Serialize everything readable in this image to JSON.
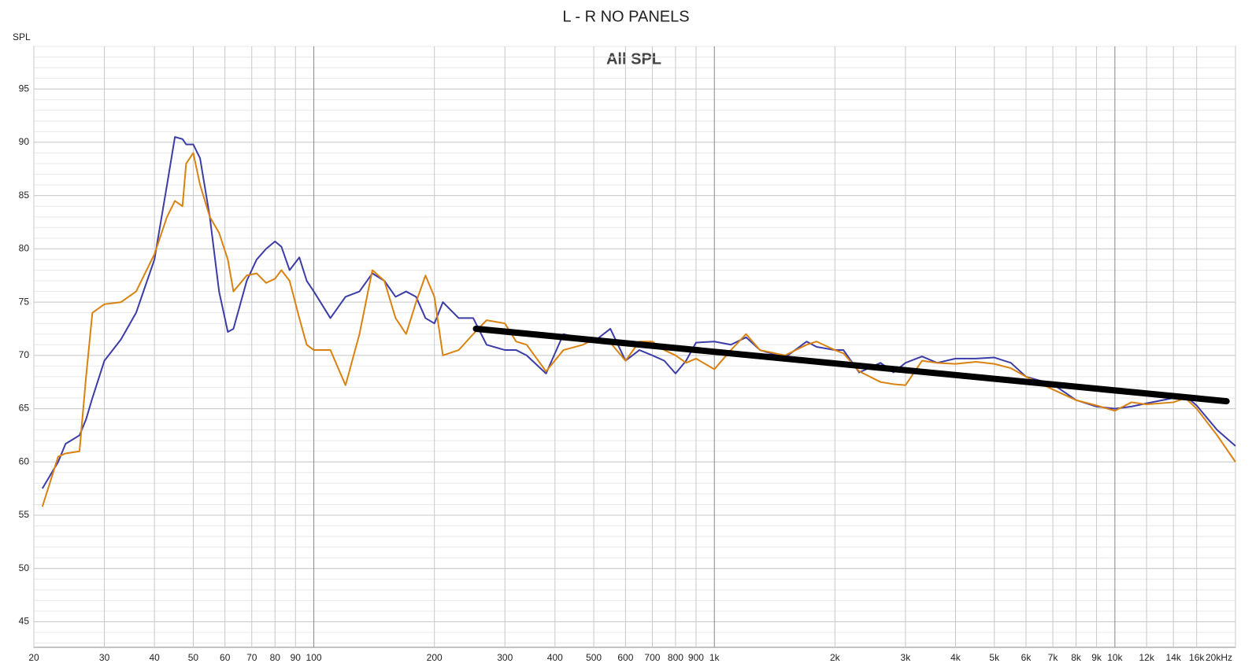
{
  "chart_data": {
    "type": "line",
    "title": "L - R NO PANELS",
    "annotation": "All SPL",
    "ylabel": "SPL",
    "x": [
      21,
      23,
      24,
      26,
      27,
      28,
      30,
      33,
      36,
      40,
      43,
      45,
      47,
      48,
      50,
      52,
      55,
      58,
      61,
      63,
      68,
      72,
      76,
      80,
      83,
      87,
      92,
      96,
      100,
      110,
      120,
      130,
      140,
      150,
      160,
      170,
      180,
      190,
      200,
      210,
      230,
      250,
      270,
      300,
      320,
      340,
      380,
      420,
      470,
      500,
      550,
      600,
      650,
      700,
      750,
      800,
      850,
      900,
      1000,
      1100,
      1200,
      1300,
      1500,
      1700,
      1800,
      2000,
      2100,
      2300,
      2600,
      2800,
      3000,
      3300,
      3600,
      4000,
      4500,
      5000,
      5500,
      6000,
      7000,
      8000,
      9000,
      10000,
      11000,
      12000,
      14000,
      15000,
      16000,
      18000,
      20000
    ],
    "series": [
      {
        "color": "#3c3ca8",
        "values": [
          57.5,
          60,
          61.7,
          62.5,
          64,
          66,
          69.5,
          71.5,
          74,
          79,
          86,
          90.5,
          90.3,
          89.8,
          89.8,
          88.5,
          83,
          76,
          72.2,
          72.5,
          77,
          79,
          80,
          80.7,
          80.2,
          78,
          79.2,
          77,
          76,
          73.5,
          75.5,
          76,
          77.7,
          77,
          75.5,
          76,
          75.5,
          73.5,
          73,
          75,
          73.5,
          73.5,
          71,
          70.5,
          70.5,
          70,
          68.3,
          72,
          71.5,
          71.3,
          72.5,
          69.5,
          70.5,
          70,
          69.5,
          68.3,
          69.5,
          71.2,
          71.3,
          71,
          71.7,
          70.5,
          69.8,
          71.3,
          70.8,
          70.5,
          70.5,
          68.4,
          69.3,
          68.4,
          69.3,
          69.9,
          69.3,
          69.7,
          69.7,
          69.8,
          69.3,
          68,
          67.3,
          65.8,
          65.2,
          65,
          65.2,
          65.5,
          66,
          66.2,
          65.3,
          63,
          61.5
        ]
      },
      {
        "color": "#d9820f",
        "values": [
          55.8,
          60.5,
          60.8,
          61,
          68,
          74,
          74.8,
          75,
          76,
          79.5,
          83,
          84.5,
          84,
          88,
          89,
          86,
          83,
          81.5,
          79,
          76,
          77.5,
          77.7,
          76.8,
          77.2,
          78,
          77,
          73.5,
          71,
          70.5,
          70.5,
          67.2,
          72,
          78,
          77,
          73.5,
          72,
          75,
          77.5,
          75.5,
          70,
          70.5,
          72,
          73.3,
          73,
          71.3,
          71,
          68.5,
          70.5,
          71,
          71.5,
          71.2,
          69.5,
          71.3,
          71.3,
          70.5,
          70,
          69.3,
          69.7,
          68.7,
          70.5,
          72,
          70.5,
          70,
          71,
          71.3,
          70.5,
          70.2,
          68.5,
          67.5,
          67.3,
          67.2,
          69.5,
          69.3,
          69.2,
          69.4,
          69.2,
          68.8,
          68,
          66.8,
          65.8,
          65.3,
          64.8,
          65.6,
          65.4,
          65.6,
          66,
          65,
          62.5,
          60
        ]
      }
    ],
    "trend": {
      "color": "#000000",
      "x": [
        254,
        19000
      ],
      "values": [
        72.5,
        65.7
      ]
    },
    "xlog": true,
    "grid": true,
    "xlim": [
      20,
      20000
    ],
    "ylim": [
      42.6,
      99
    ],
    "xticks": [
      20,
      30,
      40,
      50,
      60,
      70,
      80,
      90,
      100,
      200,
      300,
      400,
      500,
      600,
      700,
      800,
      900,
      {
        "value": 1000,
        "label": "1k"
      },
      {
        "value": 2000,
        "label": "2k"
      },
      {
        "value": 3000,
        "label": "3k"
      },
      {
        "value": 4000,
        "label": "4k"
      },
      {
        "value": 5000,
        "label": "5k"
      },
      {
        "value": 6000,
        "label": "6k"
      },
      {
        "value": 7000,
        "label": "7k"
      },
      {
        "value": 8000,
        "label": "8k"
      },
      {
        "value": 9000,
        "label": "9k"
      },
      {
        "value": 10000,
        "label": "10k"
      },
      {
        "value": 12000,
        "label": "12k"
      },
      {
        "value": 14000,
        "label": "14k"
      },
      {
        "value": 16000,
        "label": "16k"
      },
      {
        "value": 20000,
        "label": "20kHz"
      }
    ],
    "yticks": [
      45,
      50,
      55,
      60,
      65,
      70,
      75,
      80,
      85,
      90,
      95
    ]
  }
}
